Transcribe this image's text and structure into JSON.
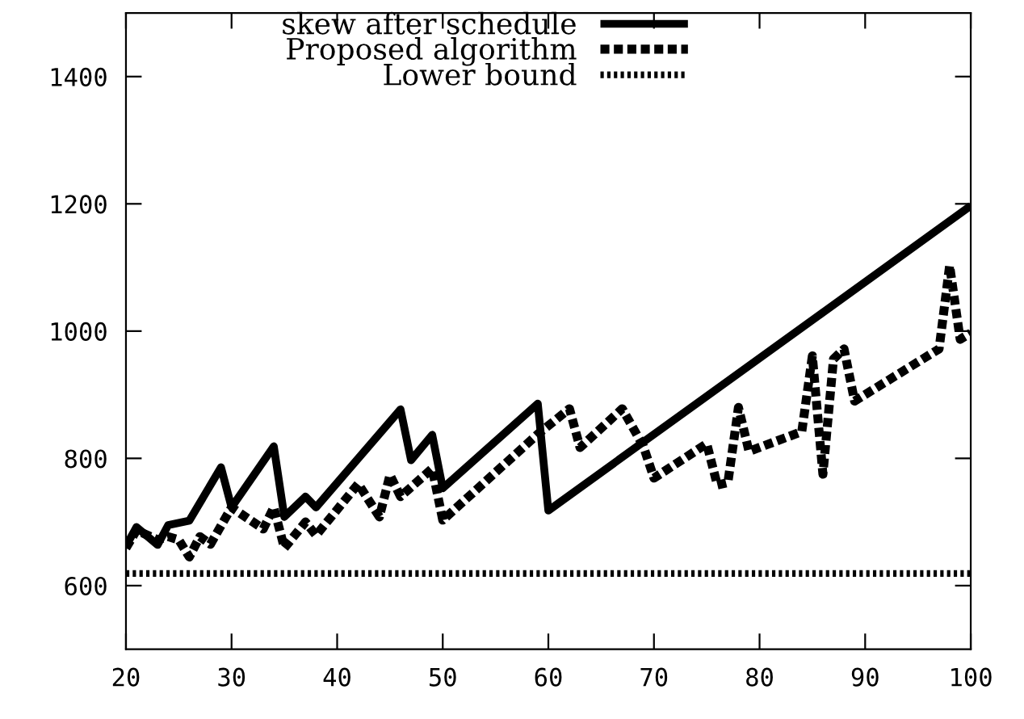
{
  "chart_data": {
    "type": "line",
    "xlim": [
      20,
      100
    ],
    "xticks": [
      20,
      30,
      40,
      50,
      60,
      70,
      80,
      90,
      100
    ],
    "ylim": [
      500,
      1500
    ],
    "yticks": [
      600,
      800,
      1000,
      1200,
      1400
    ],
    "grid": false,
    "legend": "top left",
    "marker": "none",
    "series": [
      {
        "name": "skew after schedule",
        "color": "#000000",
        "line_style": "solid",
        "x": [
          20,
          21,
          23,
          24,
          26,
          29,
          30,
          34,
          35,
          37,
          38,
          46,
          47,
          49,
          50,
          59,
          60,
          100
        ],
        "values": [
          662,
          692,
          664,
          695,
          702,
          786,
          723,
          819,
          708,
          740,
          723,
          877,
          797,
          837,
          753,
          886,
          718,
          1197
        ]
      },
      {
        "name": "Proposed algorithm",
        "color": "#000000",
        "line_style": "dashed",
        "x": [
          20,
          21,
          23,
          24,
          25,
          26,
          27,
          28,
          30,
          33,
          34,
          35,
          37,
          38,
          42,
          44,
          45,
          46,
          49,
          50,
          59,
          62,
          63,
          67,
          69,
          70,
          75,
          76,
          77,
          78,
          79,
          84,
          85,
          86,
          87,
          88,
          89,
          97,
          98,
          99,
          100
        ],
        "values": [
          659,
          687,
          672,
          677,
          672,
          645,
          677,
          665,
          723,
          689,
          723,
          659,
          700,
          679,
          760,
          708,
          774,
          740,
          784,
          703,
          838,
          878,
          817,
          878,
          819,
          769,
          823,
          758,
          762,
          880,
          811,
          842,
          961,
          775,
          956,
          972,
          890,
          972,
          1103,
          987,
          997
        ]
      },
      {
        "name": "Lower bound",
        "color": "#000000",
        "line_style": "dotted",
        "x": [
          20,
          100
        ],
        "values": [
          619,
          619
        ]
      }
    ]
  }
}
